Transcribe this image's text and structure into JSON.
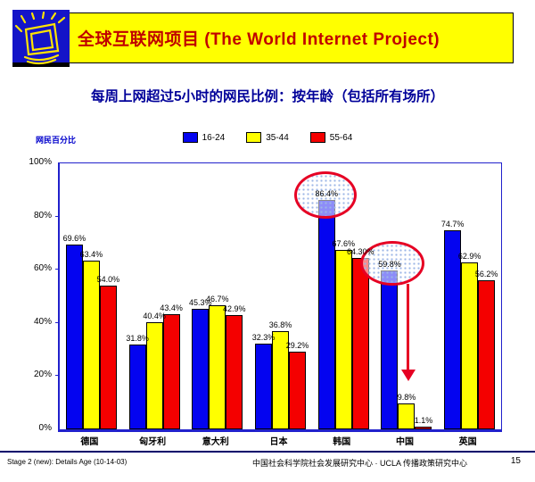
{
  "header": {
    "title": "全球互联网项目 (The World Internet Project)",
    "logo": "shining-monitor"
  },
  "subtitle": "每周上网超过5小时的网民比例：按年龄（包括所有场所）",
  "chart_data": {
    "type": "bar",
    "title": "每周上网超过5小时的网民比例：按年龄（包括所有场所）",
    "ylabel": "网民百分比",
    "xlabel": "",
    "ylim": [
      0,
      100
    ],
    "yticks": [
      "100%",
      "80%",
      "60%",
      "40%",
      "20%",
      "0%"
    ],
    "grid": "box-frame-only",
    "legend_position": "top-center",
    "categories": [
      "德国",
      "匈牙利",
      "意大利",
      "日本",
      "韩国",
      "中国",
      "英国"
    ],
    "series": [
      {
        "name": "16-24",
        "color": "#0404f0",
        "values": [
          69.6,
          31.8,
          45.3,
          32.3,
          86.4,
          59.8,
          74.7
        ],
        "labels": [
          "69.6%",
          "31.8%",
          "45.3%",
          "32.3%",
          "86.4%",
          "59.8%",
          "74.7%"
        ]
      },
      {
        "name": "35-44",
        "color": "#ffff00",
        "values": [
          63.4,
          40.4,
          46.7,
          36.8,
          67.6,
          9.8,
          62.9
        ],
        "labels": [
          "63.4%",
          "40.4%",
          "46.7%",
          "36.8%",
          "67.6%",
          "9.8%",
          "62.9%"
        ]
      },
      {
        "name": "55-64",
        "color": "#f40000",
        "values": [
          54.0,
          43.4,
          42.9,
          29.2,
          64.3,
          1.1,
          56.2
        ],
        "labels": [
          "54.0%",
          "43.4%",
          "42.9%",
          "29.2%",
          "64.30%",
          "1.1%",
          "56.2%"
        ]
      }
    ],
    "annotations": [
      {
        "type": "ellipse",
        "target_label": "86.4%",
        "series": "16-24",
        "category": "韩国",
        "color": "#e60023"
      },
      {
        "type": "ellipse",
        "target_label": "59.8%",
        "series": "16-24",
        "category": "中国",
        "color": "#e60023"
      },
      {
        "type": "arrow-down",
        "category": "中国",
        "note": "points to low 35-44 and 55-64 bars",
        "color": "#e60023"
      }
    ]
  },
  "footer": {
    "left": "Stage 2 (new): Details Age (10-14-03)",
    "center": "中国社会科学院社会发展研究中心 · UCLA 传播政策研究中心",
    "page": "15"
  }
}
